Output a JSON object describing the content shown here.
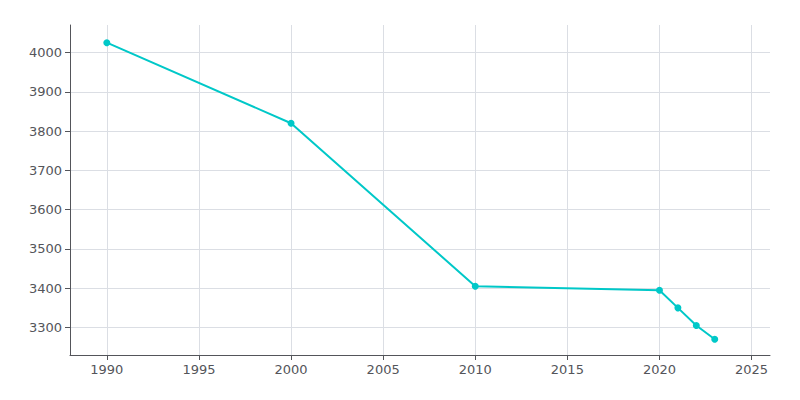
{
  "chart_data": {
    "type": "line",
    "x": [
      1990,
      2000,
      2010,
      2020,
      2021,
      2022,
      2023
    ],
    "values": [
      4025,
      3820,
      3405,
      3395,
      3350,
      3305,
      3270
    ],
    "color": "#00C8C8",
    "marker": "circle",
    "xlim": [
      1988,
      2026
    ],
    "ylim": [
      3230,
      4070
    ],
    "xticks": [
      1990,
      1995,
      2000,
      2005,
      2010,
      2015,
      2020,
      2025
    ],
    "yticks": [
      3300,
      3400,
      3500,
      3600,
      3700,
      3800,
      3900,
      4000
    ],
    "grid": true
  }
}
